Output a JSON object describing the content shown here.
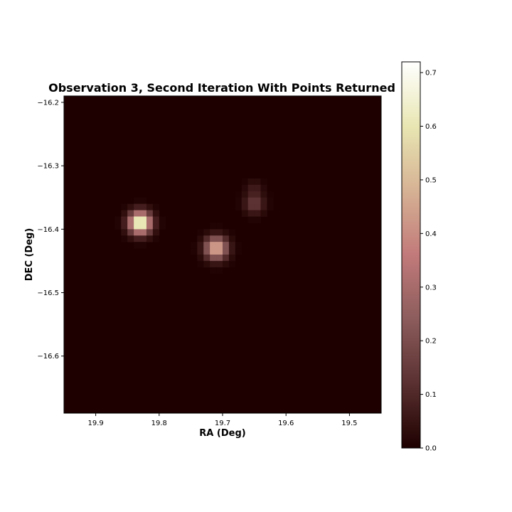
{
  "chart_data": {
    "type": "heatmap",
    "title": "Observation 3, Second Iteration With Points Returned",
    "xlabel": "RA (Deg)",
    "ylabel": "DEC (Deg)",
    "xlim": [
      19.95,
      19.45
    ],
    "ylim": [
      -16.69,
      -16.19
    ],
    "x_ticks": [
      19.9,
      19.8,
      19.7,
      19.6,
      19.5
    ],
    "x_tick_labels": [
      "19.9",
      "19.8",
      "19.7",
      "19.6",
      "19.5"
    ],
    "y_ticks": [
      -16.2,
      -16.3,
      -16.4,
      -16.5,
      -16.6
    ],
    "y_tick_labels": [
      "−16.2",
      "−16.3",
      "−16.4",
      "−16.5",
      "−16.6"
    ],
    "colorbar": {
      "min": 0.0,
      "max": 0.72,
      "ticks": [
        0.0,
        0.1,
        0.2,
        0.3,
        0.4,
        0.5,
        0.6,
        0.7
      ],
      "tick_labels": [
        "0.0",
        "0.1",
        "0.2",
        "0.3",
        "0.4",
        "0.5",
        "0.6",
        "0.7"
      ],
      "colormap": [
        "#1e0000",
        "#5a3030",
        "#8c5c5c",
        "#c27a7a",
        "#d6b294",
        "#e8e6b2",
        "#ffffff"
      ]
    },
    "sources": [
      {
        "ra": 19.83,
        "dec": -16.39,
        "peak": 0.72,
        "sigma_deg": 0.012
      },
      {
        "ra": 19.71,
        "dec": -16.43,
        "peak": 0.5,
        "sigma_deg": 0.012
      },
      {
        "ra": 19.65,
        "dec": -16.36,
        "peak": 0.15,
        "sigma_deg": 0.011
      },
      {
        "ra": 19.65,
        "dec": -16.335,
        "peak": 0.06,
        "sigma_deg": 0.009
      }
    ]
  }
}
